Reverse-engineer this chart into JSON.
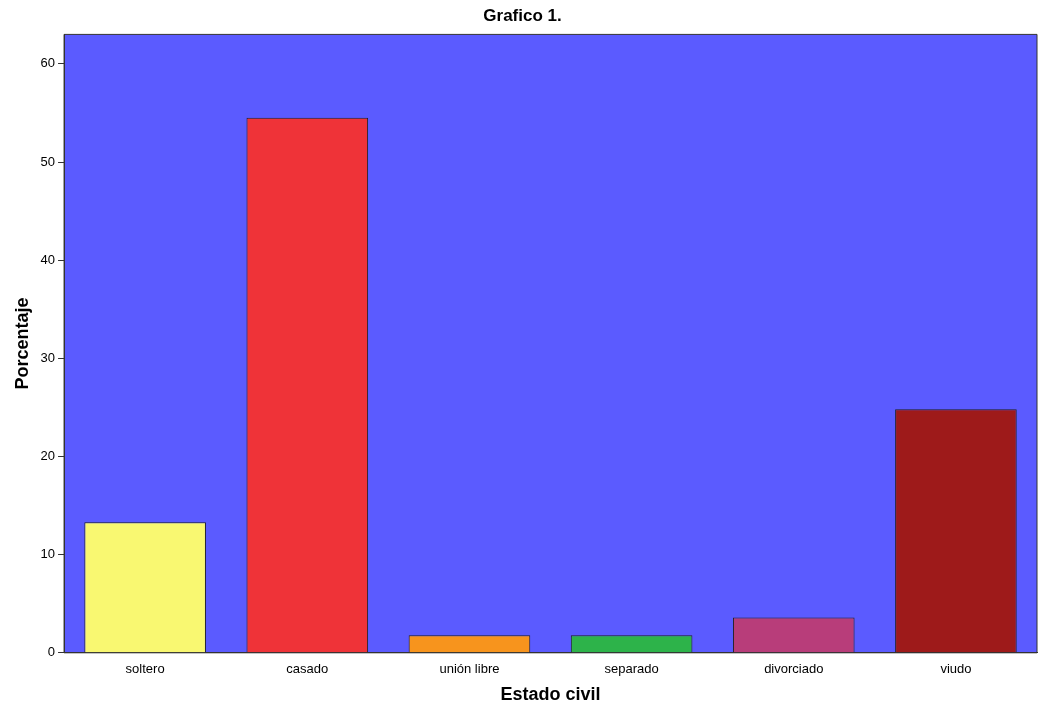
{
  "chart_data": {
    "type": "bar",
    "title": "Grafico 1.",
    "xlabel": "Estado civil",
    "ylabel": "Porcentaje",
    "categories": [
      "soltero",
      "casado",
      "unión libre",
      "separado",
      "divorciado",
      "viudo"
    ],
    "values": [
      13.3,
      54.5,
      1.8,
      1.8,
      3.6,
      24.8
    ],
    "colors": [
      "#f9f871",
      "#ef3338",
      "#f7941d",
      "#2db34a",
      "#b83d7a",
      "#9e1a1a"
    ],
    "ylim": [
      0,
      63
    ],
    "yticks": [
      0,
      10,
      20,
      30,
      40,
      50,
      60
    ],
    "grid": false,
    "legend": false
  }
}
